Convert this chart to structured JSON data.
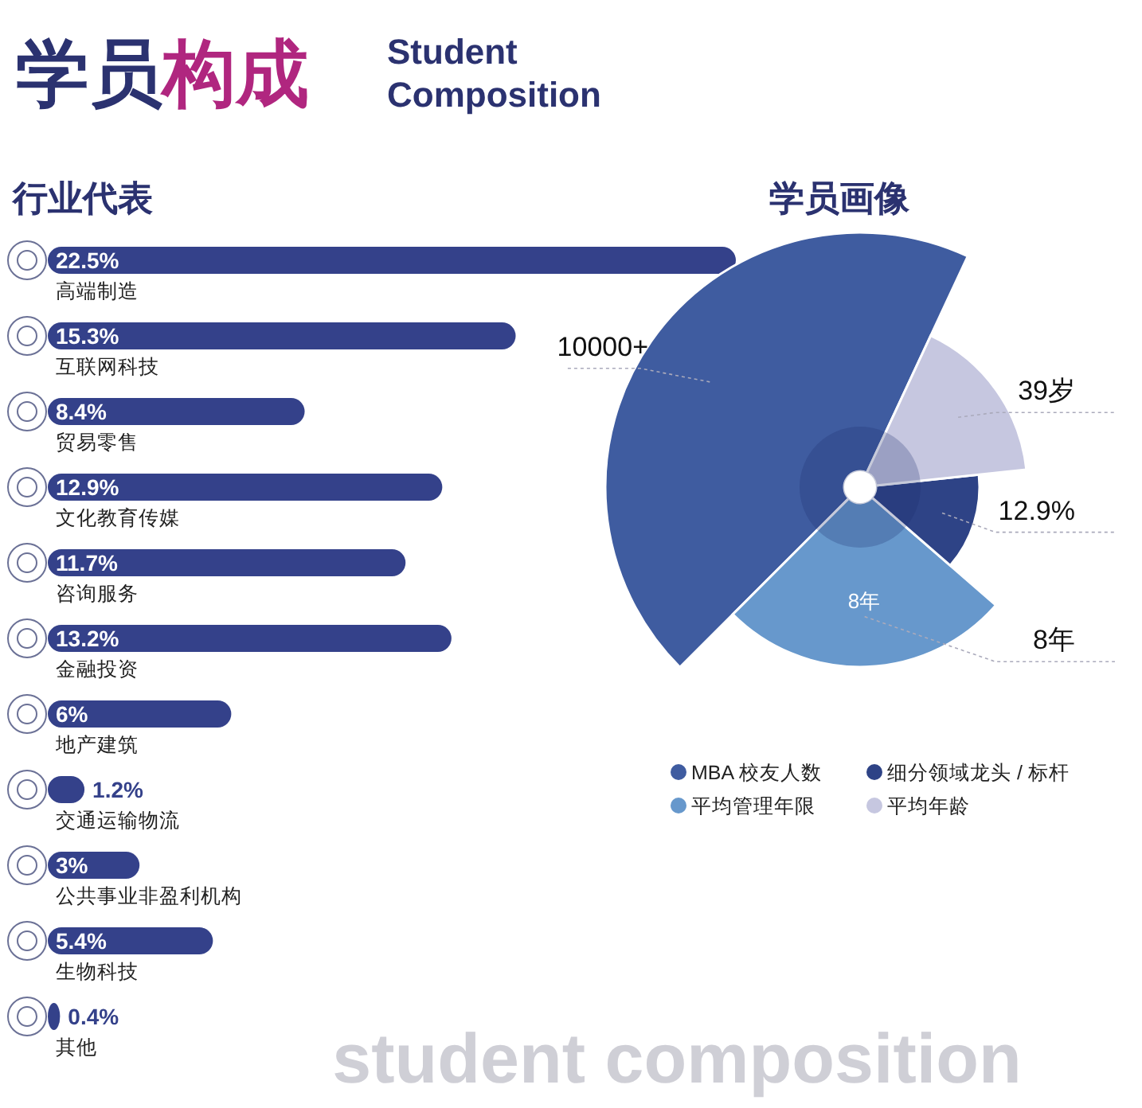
{
  "chart_data": [
    {
      "type": "other",
      "title": "学员构成",
      "subtitle": "Student Composition",
      "colors": [
        "#2b3270",
        "#b0267f"
      ],
      "annotations": [
        "student composition"
      ]
    },
    {
      "type": "bar",
      "title": "行业代表",
      "orientation": "horizontal",
      "data_labels": true,
      "categories": [
        "高端制造",
        "互联网科技",
        "贸易零售",
        "文化教育传媒",
        "咨询服务",
        "金融投资",
        "地产建筑",
        "交通运输物流",
        "公共事业非盈利机构",
        "生物科技",
        "其他"
      ],
      "values": [
        22.5,
        15.3,
        8.4,
        12.9,
        11.7,
        13.2,
        6,
        1.2,
        3,
        5.4,
        0.4
      ],
      "value_labels": [
        "22.5%",
        "15.3%",
        "8.4%",
        "12.9%",
        "11.7%",
        "13.2%",
        "6%",
        "1.2%",
        "3%",
        "5.4%",
        "0.4%"
      ],
      "color": "#34418a"
    },
    {
      "type": "other",
      "title": "学员画像",
      "categories": [
        "MBA 校友人数",
        "平均管理年限",
        "细分领域龙头 / 标杆",
        "平均年龄"
      ],
      "value_labels": [
        "10000+",
        "8年",
        "12.9%",
        "39岁"
      ],
      "colors": [
        "#3f5ca0",
        "#6798cc",
        "#2e4386",
        "#c6c7e0"
      ],
      "annotations": [
        "8年"
      ]
    }
  ]
}
